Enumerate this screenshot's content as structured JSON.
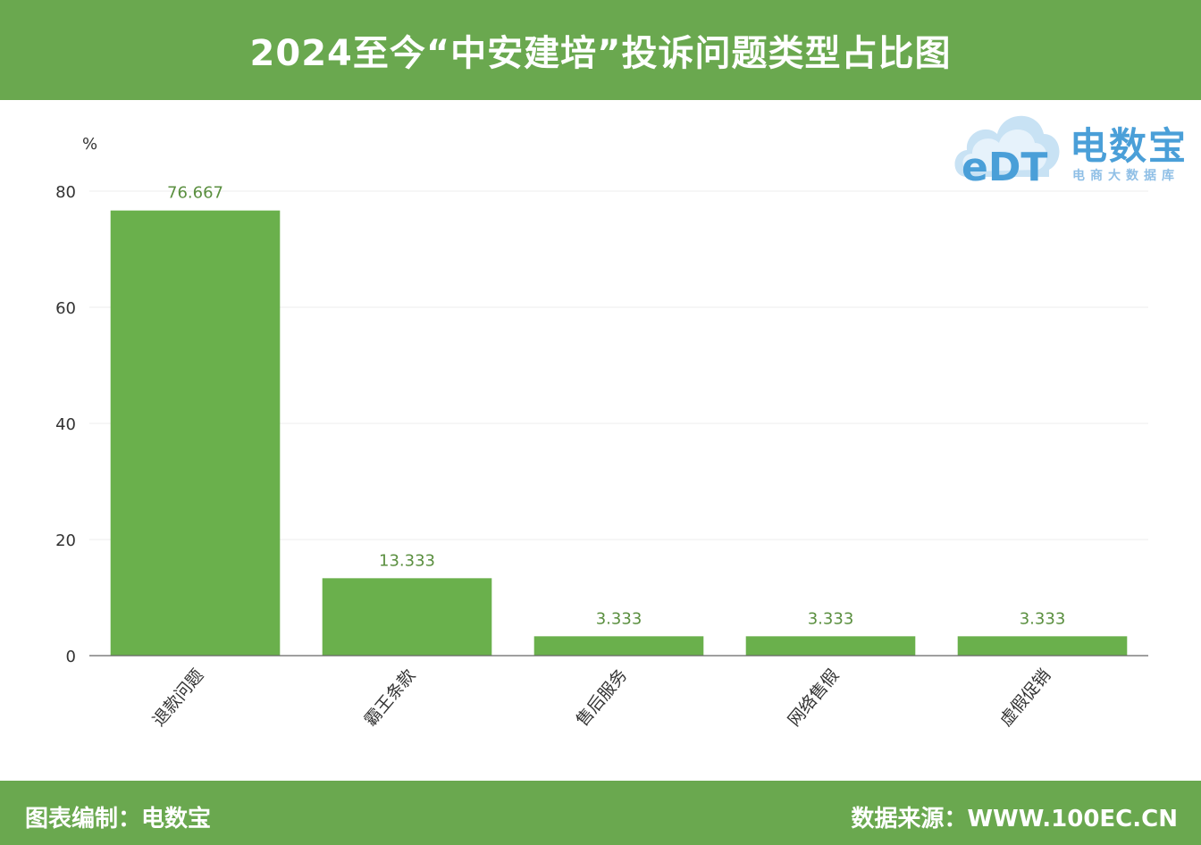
{
  "header": {
    "title": "2024至今“中安建培”投诉问题类型占比图"
  },
  "logo": {
    "name": "电数宝",
    "subtitle": "电商大数据库"
  },
  "footer": {
    "left": "图表编制：电数宝",
    "right": "数据来源：WWW.100EC.CN"
  },
  "colors": {
    "bar": "#6ab04c",
    "header": "#6aa84f",
    "label": "#5a8f3f",
    "logo": "#4a9fd8"
  },
  "chart_data": {
    "type": "bar",
    "title": "2024至今“中安建培”投诉问题类型占比图",
    "ylabel": "%",
    "xlabel": "",
    "ylim": [
      0,
      80
    ],
    "yticks": [
      0,
      20,
      40,
      60,
      80
    ],
    "grid": true,
    "categories": [
      "退款问题",
      "霸王条款",
      "售后服务",
      "网络售假",
      "虚假促销"
    ],
    "values": [
      76.667,
      13.333,
      3.333,
      3.333,
      3.333
    ],
    "value_labels": [
      "76.667",
      "13.333",
      "3.333",
      "3.333",
      "3.333"
    ]
  }
}
